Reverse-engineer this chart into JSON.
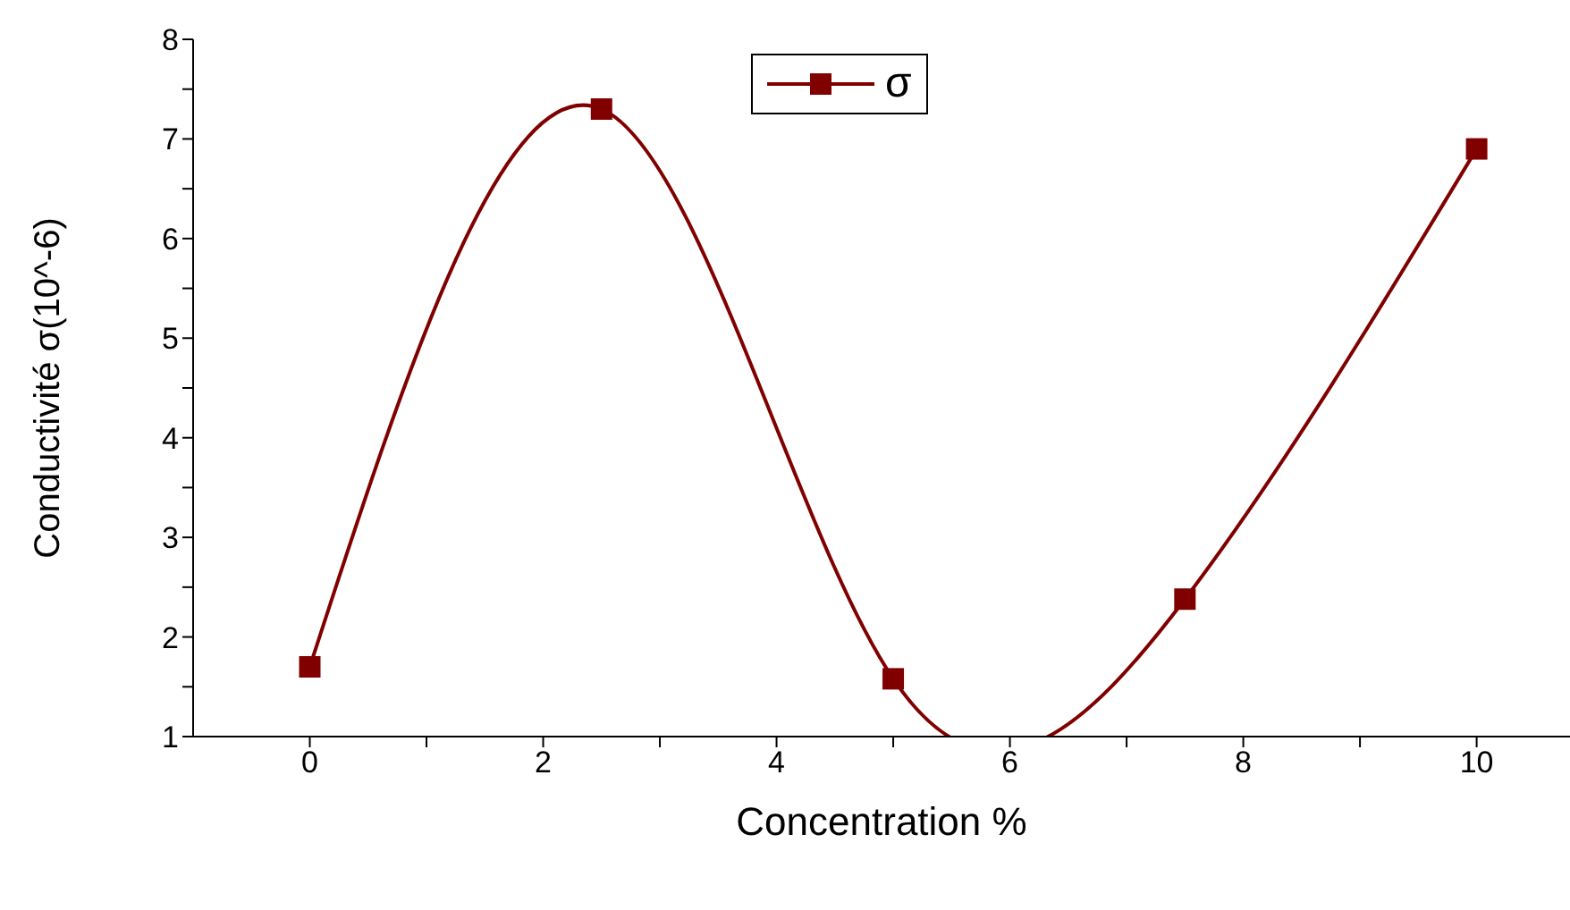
{
  "chart_data": {
    "type": "line",
    "xlabel": "Concentration %",
    "ylabel": "Conductivité σ(10^-6)",
    "x": [
      0,
      2.5,
      5,
      7.5,
      10
    ],
    "series": [
      {
        "name": "σ",
        "color": "#800000",
        "values": [
          1.7,
          7.3,
          1.58,
          2.38,
          6.9
        ]
      }
    ],
    "xlim": [
      -1,
      10.8
    ],
    "xticks": [
      0,
      {
        "value": 1,
        "label": null
      },
      2,
      {
        "value": 3,
        "label": null
      },
      4,
      {
        "value": 5,
        "label": null
      },
      6,
      {
        "value": 7,
        "label": null
      },
      8,
      {
        "value": 9,
        "label": null
      },
      10
    ],
    "ylim": [
      1,
      8
    ],
    "yticks": [
      1,
      {
        "value": 1.5,
        "label": null
      },
      2,
      {
        "value": 2.5,
        "label": null
      },
      3,
      {
        "value": 3.5,
        "label": null
      },
      4,
      {
        "value": 4.5,
        "label": null
      },
      5,
      {
        "value": 5.5,
        "label": null
      },
      6,
      {
        "value": 6.5,
        "label": null
      },
      7,
      {
        "value": 7.5,
        "label": null
      },
      8
    ],
    "marker": "square",
    "legend": "top",
    "grid": false
  }
}
